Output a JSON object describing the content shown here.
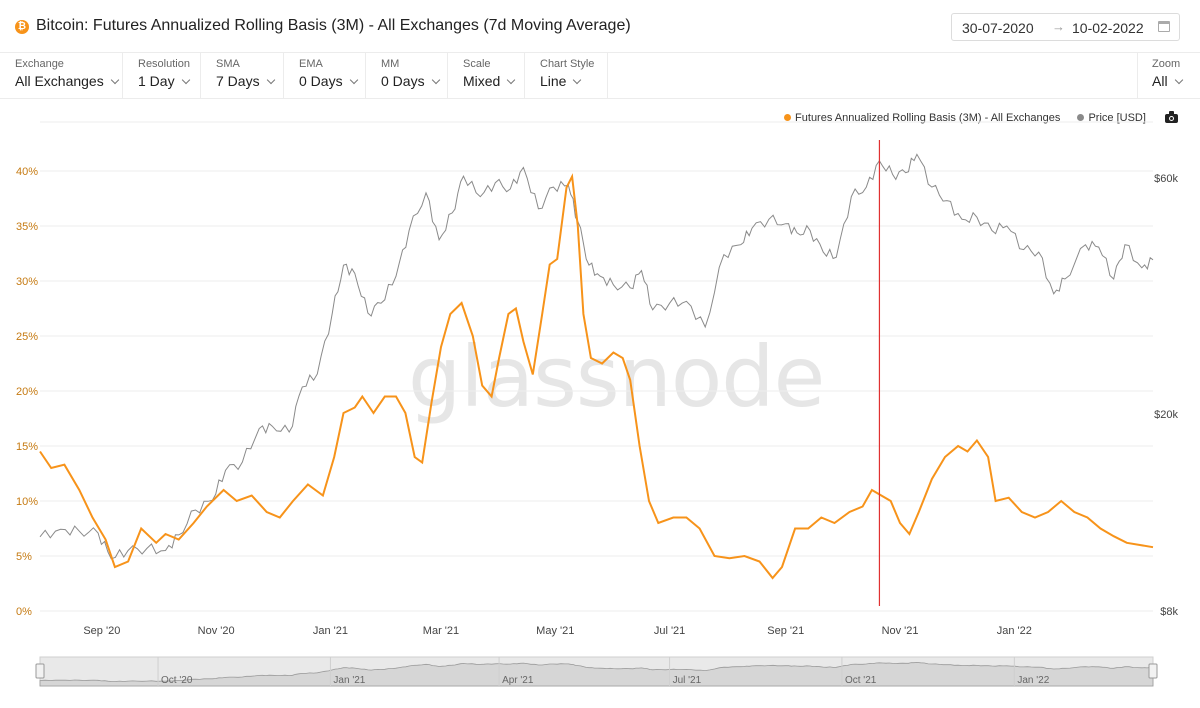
{
  "header": {
    "icon": "bitcoin-icon",
    "title": "Bitcoin: Futures Annualized Rolling Basis (3M) - All Exchanges (7d Moving Average)",
    "date_start": "30-07-2020",
    "date_end": "10-02-2022",
    "calendar_icon": "calendar-icon"
  },
  "toolbar": {
    "exchange": {
      "label": "Exchange",
      "value": "All Exchanges"
    },
    "resolution": {
      "label": "Resolution",
      "value": "1 Day"
    },
    "sma": {
      "label": "SMA",
      "value": "7 Days"
    },
    "ema": {
      "label": "EMA",
      "value": "0 Days"
    },
    "mm": {
      "label": "MM",
      "value": "0 Days"
    },
    "scale": {
      "label": "Scale",
      "value": "Mixed"
    },
    "chart_style": {
      "label": "Chart Style",
      "value": "Line"
    },
    "zoom": {
      "label": "Zoom",
      "value": "All"
    }
  },
  "watermark": "glassnode",
  "colors": {
    "basis": "#f7931a",
    "price": "#8a8a8a",
    "crosshair": "#e03131",
    "basis_axis": "#c57a12"
  },
  "chart_data": {
    "type": "line",
    "legend_position": "top-right",
    "grid": true,
    "x_ticks": [
      "Sep '20",
      "Nov '20",
      "Jan '21",
      "Mar '21",
      "May '21",
      "Jul '21",
      "Sep '21",
      "Nov '21",
      "Jan '22"
    ],
    "y_left_ticks": [
      "0%",
      "5%",
      "10%",
      "15%",
      "20%",
      "25%",
      "30%",
      "35%",
      "40%"
    ],
    "y_left_range": [
      0,
      45
    ],
    "y_right_ticks": [
      "$8k",
      "$20k",
      "$60k"
    ],
    "y_right_scale": "log",
    "y_right_range": [
      8000,
      66000
    ],
    "crosshair_date": "2021-10-21",
    "series": [
      {
        "name": "Futures Annualized Rolling Basis (3M) - All Exchanges",
        "axis": "left",
        "unit": "%",
        "points": [
          [
            "2020-07-30",
            14.5
          ],
          [
            "2020-08-05",
            13
          ],
          [
            "2020-08-12",
            13.3
          ],
          [
            "2020-08-20",
            11
          ],
          [
            "2020-08-27",
            8.5
          ],
          [
            "2020-09-03",
            6.5
          ],
          [
            "2020-09-08",
            4
          ],
          [
            "2020-09-15",
            4.5
          ],
          [
            "2020-09-22",
            7.5
          ],
          [
            "2020-09-30",
            6.2
          ],
          [
            "2020-10-05",
            7
          ],
          [
            "2020-10-12",
            6.5
          ],
          [
            "2020-10-20",
            8
          ],
          [
            "2020-10-27",
            9.5
          ],
          [
            "2020-11-05",
            11
          ],
          [
            "2020-11-12",
            10
          ],
          [
            "2020-11-20",
            10.5
          ],
          [
            "2020-11-28",
            9
          ],
          [
            "2020-12-05",
            8.5
          ],
          [
            "2020-12-12",
            10
          ],
          [
            "2020-12-20",
            11.5
          ],
          [
            "2020-12-28",
            10.5
          ],
          [
            "2021-01-03",
            14
          ],
          [
            "2021-01-08",
            18
          ],
          [
            "2021-01-14",
            18.5
          ],
          [
            "2021-01-18",
            19.5
          ],
          [
            "2021-01-24",
            18
          ],
          [
            "2021-01-30",
            19.5
          ],
          [
            "2021-02-05",
            19.5
          ],
          [
            "2021-02-10",
            18
          ],
          [
            "2021-02-15",
            14
          ],
          [
            "2021-02-19",
            13.5
          ],
          [
            "2021-02-24",
            19
          ],
          [
            "2021-03-01",
            24
          ],
          [
            "2021-03-06",
            27
          ],
          [
            "2021-03-12",
            28
          ],
          [
            "2021-03-18",
            25
          ],
          [
            "2021-03-23",
            20.5
          ],
          [
            "2021-03-28",
            19.5
          ],
          [
            "2021-04-01",
            23
          ],
          [
            "2021-04-06",
            27
          ],
          [
            "2021-04-10",
            27.5
          ],
          [
            "2021-04-14",
            24.5
          ],
          [
            "2021-04-19",
            21.5
          ],
          [
            "2021-04-24",
            27
          ],
          [
            "2021-04-28",
            31.5
          ],
          [
            "2021-05-02",
            32
          ],
          [
            "2021-05-07",
            38.5
          ],
          [
            "2021-05-10",
            39.5
          ],
          [
            "2021-05-13",
            35
          ],
          [
            "2021-05-16",
            27
          ],
          [
            "2021-05-20",
            23
          ],
          [
            "2021-05-26",
            22.5
          ],
          [
            "2021-06-01",
            23.5
          ],
          [
            "2021-06-06",
            23
          ],
          [
            "2021-06-10",
            21
          ],
          [
            "2021-06-15",
            15
          ],
          [
            "2021-06-20",
            10
          ],
          [
            "2021-06-25",
            8
          ],
          [
            "2021-07-03",
            8.5
          ],
          [
            "2021-07-10",
            8.5
          ],
          [
            "2021-07-17",
            7.5
          ],
          [
            "2021-07-25",
            5
          ],
          [
            "2021-08-02",
            4.8
          ],
          [
            "2021-08-10",
            5
          ],
          [
            "2021-08-18",
            4.5
          ],
          [
            "2021-08-25",
            3
          ],
          [
            "2021-08-30",
            4
          ],
          [
            "2021-09-06",
            7.5
          ],
          [
            "2021-09-13",
            7.5
          ],
          [
            "2021-09-20",
            8.5
          ],
          [
            "2021-09-27",
            8
          ],
          [
            "2021-10-05",
            9
          ],
          [
            "2021-10-12",
            9.5
          ],
          [
            "2021-10-17",
            11
          ],
          [
            "2021-10-22",
            10.5
          ],
          [
            "2021-10-27",
            10
          ],
          [
            "2021-11-01",
            8
          ],
          [
            "2021-11-06",
            7
          ],
          [
            "2021-11-11",
            9
          ],
          [
            "2021-11-18",
            12
          ],
          [
            "2021-11-25",
            14
          ],
          [
            "2021-12-02",
            15
          ],
          [
            "2021-12-07",
            14.5
          ],
          [
            "2021-12-12",
            15.5
          ],
          [
            "2021-12-18",
            14
          ],
          [
            "2021-12-22",
            10
          ],
          [
            "2021-12-29",
            10.3
          ],
          [
            "2022-01-05",
            9
          ],
          [
            "2022-01-12",
            8.5
          ],
          [
            "2022-01-19",
            9
          ],
          [
            "2022-01-26",
            10
          ],
          [
            "2022-02-02",
            9
          ],
          [
            "2022-02-09",
            8.5
          ],
          [
            "2022-02-16",
            7.5
          ],
          [
            "2022-02-23",
            6.8
          ],
          [
            "2022-03-02",
            6.2
          ],
          [
            "2022-03-09",
            6
          ],
          [
            "2022-03-16",
            5.8
          ]
        ]
      },
      {
        "name": "Price [USD]",
        "axis": "right",
        "unit": "USD",
        "points": [
          [
            "2020-07-30",
            11300
          ],
          [
            "2020-08-10",
            11700
          ],
          [
            "2020-08-20",
            11600
          ],
          [
            "2020-08-30",
            11500
          ],
          [
            "2020-09-06",
            10200
          ],
          [
            "2020-09-15",
            10600
          ],
          [
            "2020-09-25",
            10700
          ],
          [
            "2020-10-05",
            10600
          ],
          [
            "2020-10-12",
            11400
          ],
          [
            "2020-10-21",
            12800
          ],
          [
            "2020-10-30",
            13400
          ],
          [
            "2020-11-06",
            15400
          ],
          [
            "2020-11-15",
            16000
          ],
          [
            "2020-11-24",
            18700
          ],
          [
            "2020-12-01",
            18900
          ],
          [
            "2020-12-10",
            18400
          ],
          [
            "2020-12-17",
            22700
          ],
          [
            "2020-12-25",
            24100
          ],
          [
            "2021-01-02",
            32000
          ],
          [
            "2021-01-08",
            40000
          ],
          [
            "2021-01-14",
            38500
          ],
          [
            "2021-01-21",
            32000
          ],
          [
            "2021-01-28",
            33500
          ],
          [
            "2021-02-05",
            38000
          ],
          [
            "2021-02-12",
            47000
          ],
          [
            "2021-02-21",
            56000
          ],
          [
            "2021-02-28",
            45000
          ],
          [
            "2021-03-07",
            51000
          ],
          [
            "2021-03-13",
            60500
          ],
          [
            "2021-03-22",
            55000
          ],
          [
            "2021-03-30",
            58700
          ],
          [
            "2021-04-07",
            57000
          ],
          [
            "2021-04-14",
            63000
          ],
          [
            "2021-04-22",
            52000
          ],
          [
            "2021-04-30",
            57500
          ],
          [
            "2021-05-08",
            58000
          ],
          [
            "2021-05-13",
            49000
          ],
          [
            "2021-05-19",
            40000
          ],
          [
            "2021-05-25",
            38000
          ],
          [
            "2021-06-01",
            36500
          ],
          [
            "2021-06-10",
            36000
          ],
          [
            "2021-06-16",
            39000
          ],
          [
            "2021-06-22",
            32500
          ],
          [
            "2021-07-01",
            33500
          ],
          [
            "2021-07-10",
            33800
          ],
          [
            "2021-07-20",
            30000
          ],
          [
            "2021-07-30",
            42000
          ],
          [
            "2021-08-08",
            44000
          ],
          [
            "2021-08-14",
            47500
          ],
          [
            "2021-08-23",
            49500
          ],
          [
            "2021-09-01",
            48500
          ],
          [
            "2021-09-07",
            46500
          ],
          [
            "2021-09-14",
            47000
          ],
          [
            "2021-09-21",
            42500
          ],
          [
            "2021-09-28",
            41500
          ],
          [
            "2021-10-06",
            55000
          ],
          [
            "2021-10-14",
            57500
          ],
          [
            "2021-10-21",
            65000
          ],
          [
            "2021-10-28",
            61000
          ],
          [
            "2021-11-04",
            61500
          ],
          [
            "2021-11-10",
            67000
          ],
          [
            "2021-11-18",
            57500
          ],
          [
            "2021-11-26",
            54000
          ],
          [
            "2021-12-04",
            49500
          ],
          [
            "2021-12-12",
            50000
          ],
          [
            "2021-12-20",
            47000
          ],
          [
            "2021-12-28",
            48000
          ],
          [
            "2022-01-06",
            43000
          ],
          [
            "2022-01-14",
            42500
          ],
          [
            "2022-01-22",
            35000
          ],
          [
            "2022-01-28",
            37500
          ],
          [
            "2022-02-08",
            44000
          ],
          [
            "2022-02-15",
            43500
          ],
          [
            "2022-02-23",
            37500
          ],
          [
            "2022-03-01",
            44000
          ],
          [
            "2022-03-10",
            39500
          ],
          [
            "2022-03-16",
            41000
          ]
        ]
      }
    ],
    "navigator": {
      "ticks": [
        "Oct '20",
        "Jan '21",
        "Apr '21",
        "Jul '21",
        "Oct '21",
        "Jan '22"
      ]
    }
  }
}
